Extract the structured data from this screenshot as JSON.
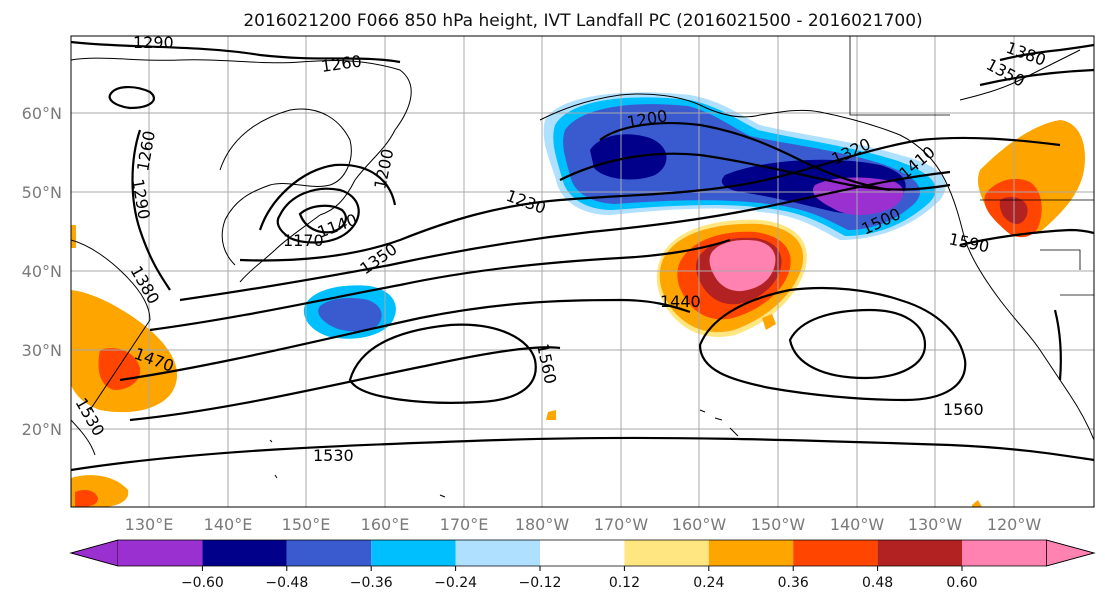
{
  "title": "2016021200 F066 850 hPa height, IVT Landfall PC (2016021500 - 2016021700)",
  "map": {
    "lat_labels": [
      "60°N",
      "50°N",
      "40°N",
      "30°N",
      "20°N"
    ],
    "lon_labels": [
      "130°E",
      "140°E",
      "150°E",
      "160°E",
      "170°E",
      "180°W",
      "170°W",
      "160°W",
      "150°W",
      "140°W",
      "130°W",
      "120°W"
    ],
    "contour_labels": [
      "1290",
      "1260",
      "1380",
      "1350",
      "1200",
      "1320",
      "1260",
      "1290",
      "1200",
      "1140",
      "1170",
      "1230",
      "1350",
      "1380",
      "1410",
      "1500",
      "1590",
      "1440",
      "1470",
      "1530",
      "1560",
      "1560",
      "1530"
    ],
    "shading_colors": {
      "neg_060": "#9b30d0",
      "neg_048": "#00008b",
      "neg_036": "#3a5bd0",
      "neg_024": "#00bfff",
      "neg_012": "#b0e0ff",
      "zero": "#ffffff",
      "pos_012": "#ffe680",
      "pos_024": "#ffa500",
      "pos_036": "#ff4500",
      "pos_048": "#b22222",
      "pos_060": "#ff82b0"
    }
  },
  "colorbar": {
    "tick_labels": [
      "−0.60",
      "−0.48",
      "−0.36",
      "−0.24",
      "−0.12",
      "0.12",
      "0.24",
      "0.36",
      "0.48",
      "0.60"
    ],
    "colors": [
      "#9b30d0",
      "#00008b",
      "#3a5bd0",
      "#00bfff",
      "#b0e0ff",
      "#ffffff",
      "#ffe680",
      "#ffa500",
      "#ff4500",
      "#b22222",
      "#ff82b0"
    ]
  }
}
